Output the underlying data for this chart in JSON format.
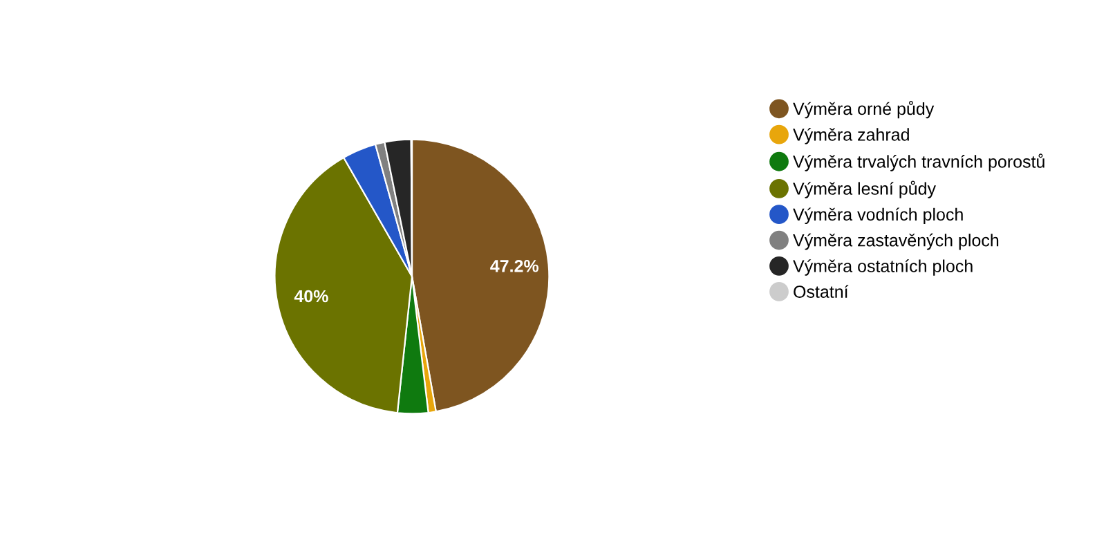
{
  "chart_data": {
    "type": "pie",
    "categories": [
      "Výměra orné půdy",
      "Výměra zahrad",
      "Výměra trvalých travních porostů",
      "Výměra lesní půdy",
      "Výměra vodních ploch",
      "Výměra zastavěných ploch",
      "Výměra ostatních ploch",
      "Ostatní"
    ],
    "values": [
      47.2,
      0.9,
      3.6,
      40,
      4.0,
      1.1,
      3.1,
      0.1
    ],
    "colors": [
      "#7e5520",
      "#e8a60c",
      "#0f7a0f",
      "#6b7300",
      "#2457c8",
      "#808080",
      "#262626",
      "#cccccc"
    ],
    "value_labels": [
      "47.2%",
      null,
      null,
      "40%",
      null,
      null,
      null,
      null
    ],
    "legend": "right"
  }
}
